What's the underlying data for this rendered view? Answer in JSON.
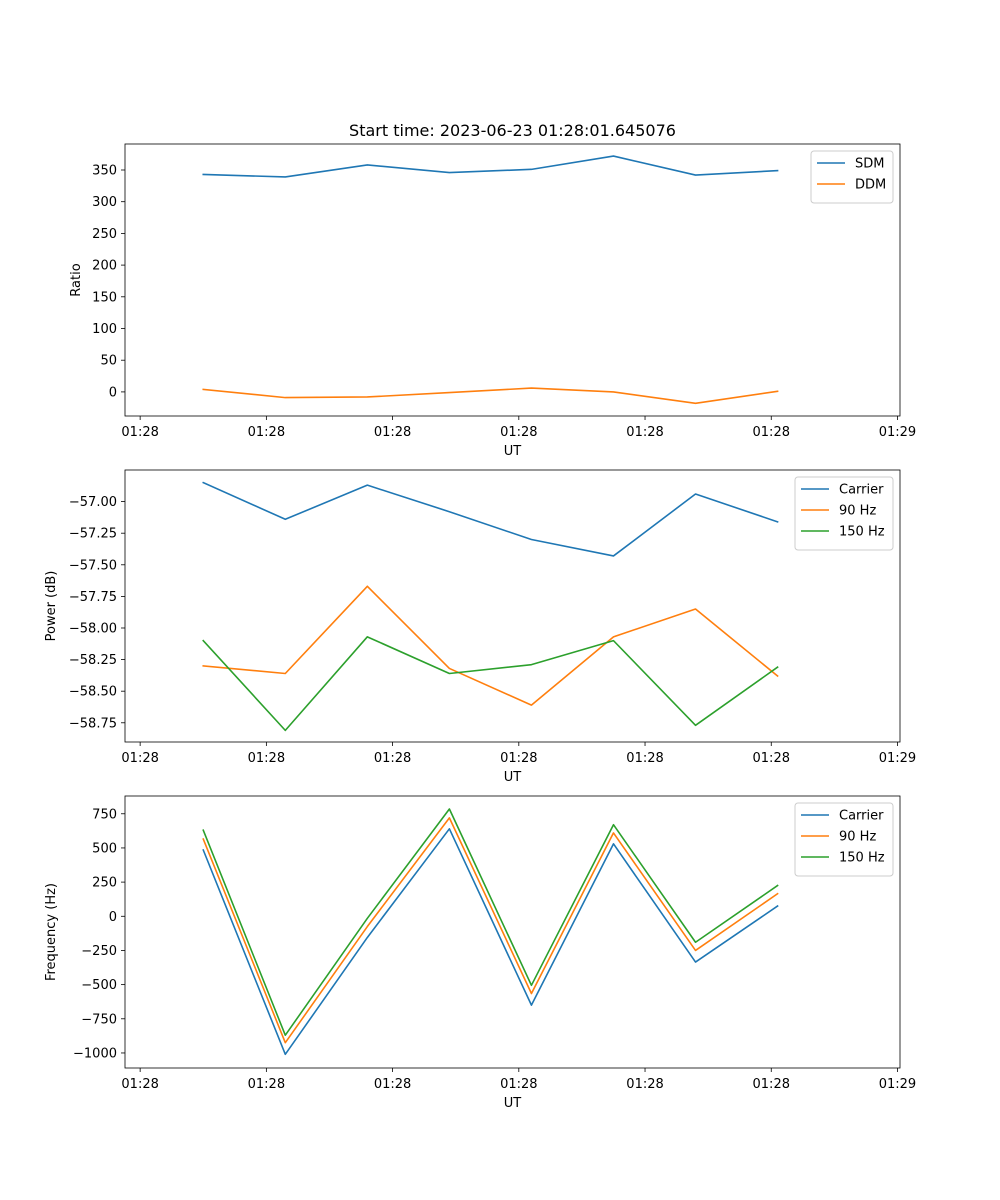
{
  "figure_title": "Start time: 2023-06-23 01:28:01.645076",
  "chart_data": [
    {
      "type": "line",
      "title": "Start time: 2023-06-23 01:28:01.645076",
      "xlabel": "UT",
      "ylabel": "Ratio",
      "x_tick_labels": [
        "01:28",
        "01:28",
        "01:28",
        "01:28",
        "01:28",
        "01:28",
        "01:29"
      ],
      "x_tick_positions": [
        0,
        1,
        2,
        3,
        4,
        5,
        6
      ],
      "xlim": [
        -0.12,
        6.02
      ],
      "x": [
        0.5,
        1.15,
        1.8,
        2.45,
        3.1,
        3.75,
        4.4,
        5.05
      ],
      "y_ticks": [
        0,
        50,
        100,
        150,
        200,
        250,
        300,
        350
      ],
      "ylim": [
        -38,
        391
      ],
      "legend_position": "upper right",
      "series": [
        {
          "name": "SDM",
          "color": "#1f77b4",
          "values": [
            343,
            339,
            358,
            346,
            351,
            372,
            342,
            349
          ]
        },
        {
          "name": "DDM",
          "color": "#ff7f0e",
          "values": [
            4,
            -9,
            -8,
            -1,
            6,
            0,
            -18,
            1
          ]
        }
      ]
    },
    {
      "type": "line",
      "xlabel": "UT",
      "ylabel": "Power (dB)",
      "x_tick_labels": [
        "01:28",
        "01:28",
        "01:28",
        "01:28",
        "01:28",
        "01:28",
        "01:29"
      ],
      "x_tick_positions": [
        0,
        1,
        2,
        3,
        4,
        5,
        6
      ],
      "xlim": [
        -0.12,
        6.02
      ],
      "x": [
        0.5,
        1.15,
        1.8,
        2.45,
        3.1,
        3.75,
        4.4,
        5.05
      ],
      "y_ticks": [
        -58.75,
        -58.5,
        -58.25,
        -58.0,
        -57.75,
        -57.5,
        -57.25,
        -57.0
      ],
      "y_tick_labels": [
        "−58.75",
        "−58.50",
        "−58.25",
        "−58.00",
        "−57.75",
        "−57.50",
        "−57.25",
        "−57.00"
      ],
      "ylim": [
        -58.902,
        -56.75
      ],
      "legend_position": "upper right",
      "series": [
        {
          "name": "Carrier",
          "color": "#1f77b4",
          "values": [
            -56.85,
            -57.14,
            -56.87,
            -57.08,
            -57.3,
            -57.43,
            -56.94,
            -57.16
          ]
        },
        {
          "name": "90 Hz",
          "color": "#ff7f0e",
          "values": [
            -58.3,
            -58.36,
            -57.67,
            -58.32,
            -58.61,
            -58.07,
            -57.85,
            -58.38
          ]
        },
        {
          "name": "150 Hz",
          "color": "#2ca02c",
          "values": [
            -58.1,
            -58.81,
            -58.07,
            -58.36,
            -58.29,
            -58.1,
            -58.77,
            -58.31
          ]
        }
      ]
    },
    {
      "type": "line",
      "xlabel": "UT",
      "ylabel": "Frequency (Hz)",
      "x_tick_labels": [
        "01:28",
        "01:28",
        "01:28",
        "01:28",
        "01:28",
        "01:28",
        "01:29"
      ],
      "x_tick_positions": [
        0,
        1,
        2,
        3,
        4,
        5,
        6
      ],
      "xlim": [
        -0.12,
        6.02
      ],
      "x": [
        0.5,
        1.15,
        1.8,
        2.45,
        3.1,
        3.75,
        4.4,
        5.05
      ],
      "y_ticks": [
        -1000,
        -750,
        -500,
        -250,
        0,
        250,
        500,
        750
      ],
      "y_tick_labels": [
        "−1000",
        "−750",
        "−500",
        "−250",
        "0",
        "250",
        "500",
        "750"
      ],
      "ylim": [
        -1110,
        880
      ],
      "legend_position": "upper right",
      "series": [
        {
          "name": "Carrier",
          "color": "#1f77b4",
          "values": [
            485,
            -1010,
            -155,
            640,
            -650,
            530,
            -335,
            75
          ]
        },
        {
          "name": "90 Hz",
          "color": "#ff7f0e",
          "values": [
            565,
            -925,
            -75,
            720,
            -565,
            610,
            -250,
            165
          ]
        },
        {
          "name": "150 Hz",
          "color": "#2ca02c",
          "values": [
            630,
            -870,
            -15,
            785,
            -505,
            670,
            -190,
            225
          ]
        }
      ]
    }
  ]
}
